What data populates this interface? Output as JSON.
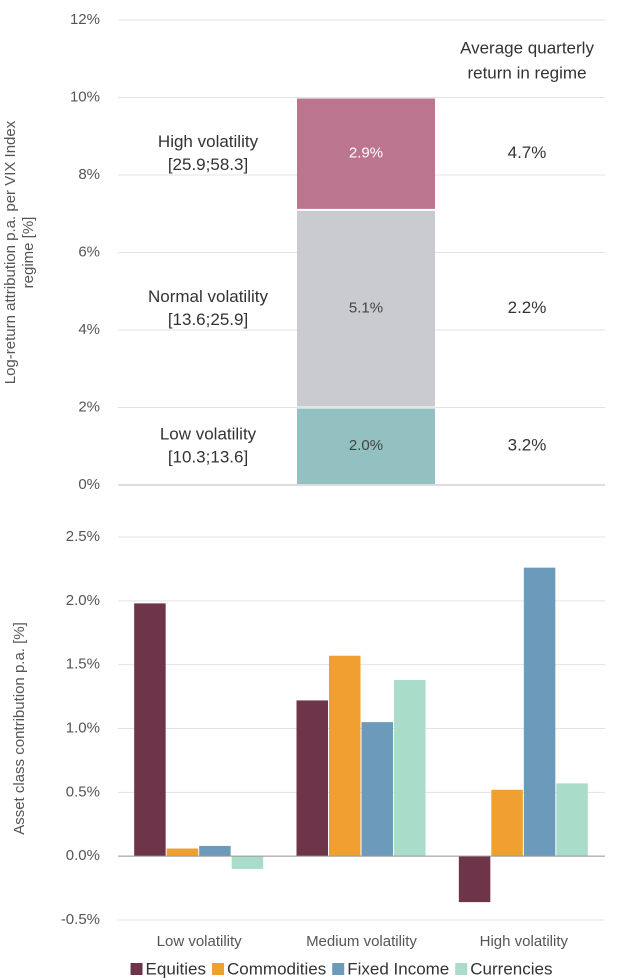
{
  "chart_data": [
    {
      "type": "stacked",
      "ylabel": [
        "Log-return attribution p.a. per VIX Index",
        "regime [%]"
      ],
      "ylim": [
        0,
        12
      ],
      "yticks": [
        {
          "value": 0,
          "label": "0%"
        },
        {
          "value": 2,
          "label": "2%"
        },
        {
          "value": 4,
          "label": "4%"
        },
        {
          "value": 6,
          "label": "6%"
        },
        {
          "value": 8,
          "label": "8%"
        },
        {
          "value": 10,
          "label": "10%"
        },
        {
          "value": 12,
          "label": "12%"
        }
      ],
      "return_header": [
        "Average quarterly",
        "return in regime"
      ],
      "series": [
        {
          "name": "Low volatility",
          "range": "[10.3;13.6]",
          "color": "#93c0c0",
          "label_color": "#444",
          "values": [
            2.0
          ],
          "value_labels": [
            "2.0%"
          ],
          "avg_return": 3.2,
          "avg_return_label": "3.2%"
        },
        {
          "name": "Normal volatility",
          "range": "[13.6;25.9]",
          "color": "#c9cbd0",
          "label_color": "#444",
          "values": [
            5.1
          ],
          "value_labels": [
            "5.1%"
          ],
          "avg_return": 2.2,
          "avg_return_label": "2.2%"
        },
        {
          "name": "High volatility",
          "range": "[25.9;58.3]",
          "color": "#bb758f",
          "label_color": "#fff",
          "values": [
            2.9
          ],
          "value_labels": [
            "2.9%"
          ],
          "avg_return": 4.7,
          "avg_return_label": "4.7%"
        }
      ],
      "grid": true
    },
    {
      "type": "bar",
      "ylabel": [
        "Asset class contribution p.a. [%]"
      ],
      "categories": [
        "Low volatility",
        "Medium volatility",
        "High volatility"
      ],
      "ylim": [
        -0.5,
        2.5
      ],
      "yticks": [
        {
          "value": -0.5,
          "label": "-0.5%"
        },
        {
          "value": 0,
          "label": "0.0%"
        },
        {
          "value": 0.5,
          "label": "0.5%"
        },
        {
          "value": 1,
          "label": "1.0%"
        },
        {
          "value": 1.5,
          "label": "1.5%"
        },
        {
          "value": 2,
          "label": "2.0%"
        },
        {
          "value": 2.5,
          "label": "2.5%"
        }
      ],
      "series": [
        {
          "name": "Equities",
          "color": "#6e354a",
          "values": [
            1.98,
            1.22,
            -0.36
          ]
        },
        {
          "name": "Commodities",
          "color": "#f0a030",
          "values": [
            0.06,
            1.57,
            0.52
          ]
        },
        {
          "name": "Fixed Income",
          "color": "#6c9aba",
          "values": [
            0.08,
            1.05,
            2.26
          ]
        },
        {
          "name": "Currencies",
          "color": "#a9dcc9",
          "values": [
            -0.1,
            1.38,
            0.57
          ]
        }
      ],
      "grid": true,
      "legend": "bottom"
    }
  ]
}
